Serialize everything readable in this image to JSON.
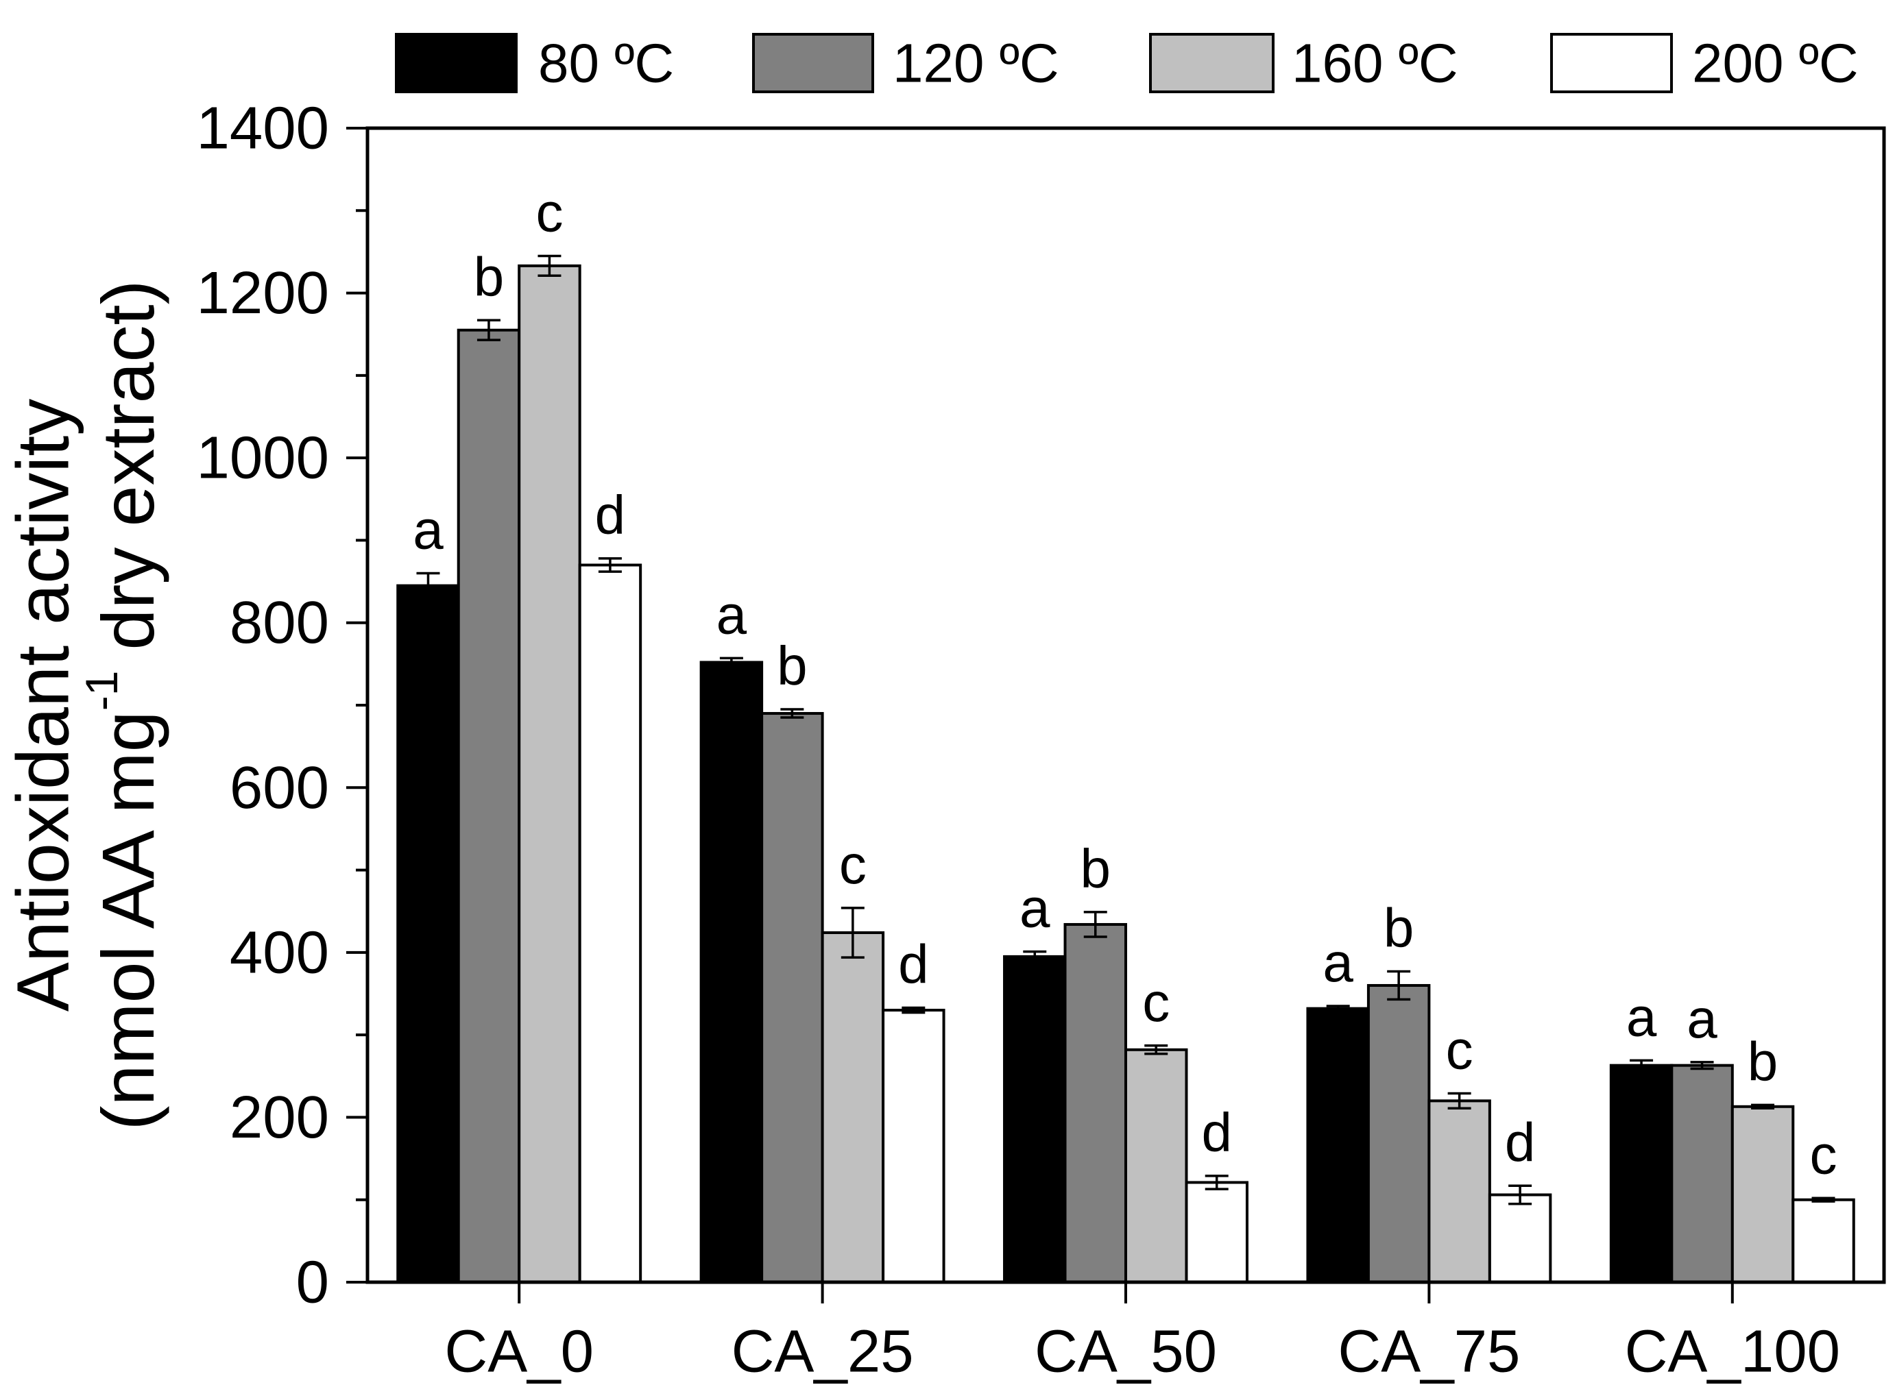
{
  "chart_data": {
    "type": "bar",
    "title": "",
    "xlabel": "",
    "ylabel": {
      "line1": "Antioxidant activity",
      "line2_prefix": "(nmol AA mg",
      "line2_superscript": "-1",
      "line2_suffix": " dry extract)"
    },
    "categories": [
      "CA_0",
      "CA_25",
      "CA_50",
      "CA_75",
      "CA_100"
    ],
    "series": [
      {
        "name": "80 ºC",
        "color": "#000000",
        "values": [
          845,
          752,
          395,
          332,
          263
        ],
        "errors": [
          15,
          5,
          6,
          3,
          6
        ],
        "letters": [
          "a",
          "a",
          "a",
          "a",
          "a"
        ]
      },
      {
        "name": "120 ºC",
        "color": "#808080",
        "values": [
          1155,
          690,
          434,
          360,
          263
        ],
        "errors": [
          12,
          5,
          15,
          17,
          4
        ],
        "letters": [
          "b",
          "b",
          "b",
          "b",
          "a"
        ]
      },
      {
        "name": "160 ºC",
        "color": "#c0c0c0",
        "values": [
          1233,
          424,
          282,
          220,
          213
        ],
        "errors": [
          12,
          30,
          5,
          9,
          2
        ],
        "letters": [
          "c",
          "c",
          "c",
          "c",
          "b"
        ]
      },
      {
        "name": "200 ºC",
        "color": "#ffffff",
        "values": [
          870,
          330,
          121,
          106,
          100
        ],
        "errors": [
          8,
          3,
          8,
          11,
          2
        ],
        "letters": [
          "d",
          "d",
          "d",
          "d",
          "c"
        ]
      }
    ],
    "ylim": [
      0,
      1400
    ],
    "yticks": [
      0,
      200,
      400,
      600,
      800,
      1000,
      1200,
      1400
    ],
    "yminor_ticks": [
      100,
      300,
      500,
      700,
      900,
      1100,
      1300
    ],
    "grid": false,
    "legend_position": "top"
  }
}
